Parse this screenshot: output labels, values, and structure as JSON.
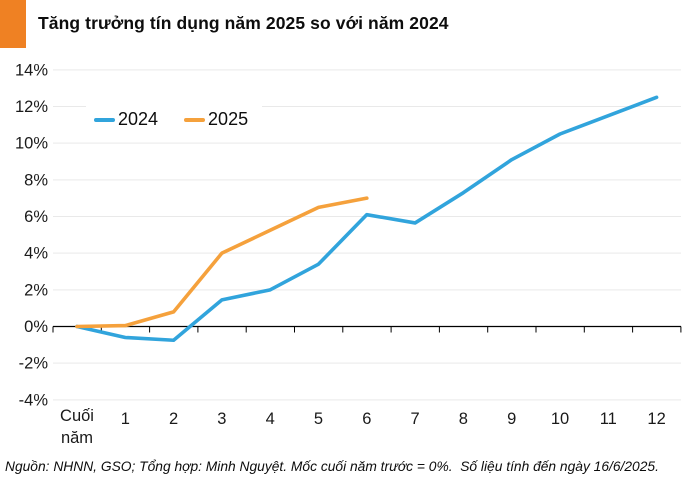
{
  "header": {
    "title": "Tăng trưởng tín dụng năm 2025 so với năm 2024",
    "accent_color": "#EF8123"
  },
  "chart_data": {
    "type": "line",
    "categories": [
      "Cuối năm",
      "1",
      "2",
      "3",
      "4",
      "5",
      "6",
      "7",
      "8",
      "9",
      "10",
      "11",
      "12"
    ],
    "series": [
      {
        "name": "2024",
        "color": "#31A4DC",
        "values": [
          0,
          -0.6,
          -0.75,
          1.45,
          2.0,
          3.4,
          6.1,
          5.65,
          7.3,
          9.1,
          10.5,
          11.5,
          12.5
        ]
      },
      {
        "name": "2025",
        "color": "#F5A13C",
        "values": [
          0,
          0.05,
          0.8,
          4.0,
          5.25,
          6.5,
          7.0
        ]
      }
    ],
    "title": "Tăng trưởng tín dụng năm 2025 so với năm 2024",
    "xlabel": "",
    "ylabel": "",
    "y_ticks": [
      "14%",
      "12%",
      "10%",
      "8%",
      "6%",
      "4%",
      "2%",
      "0%",
      "-2%",
      "-4%"
    ],
    "y_tick_values": [
      14,
      12,
      10,
      8,
      6,
      4,
      2,
      0,
      -2,
      -4
    ],
    "ylim": [
      -4,
      14
    ],
    "grid": true,
    "baseline_value": 0,
    "legend_position": "top-left-inside",
    "grid_color": "#e9e9e9",
    "axis_color": "#000000"
  },
  "footer": {
    "source_note": "Nguồn: NHNN, GSO; Tổng hợp: Minh Nguyệt. Mốc cuối năm trước = 0%.  Số liệu tính đến ngày 16/6/2025."
  }
}
